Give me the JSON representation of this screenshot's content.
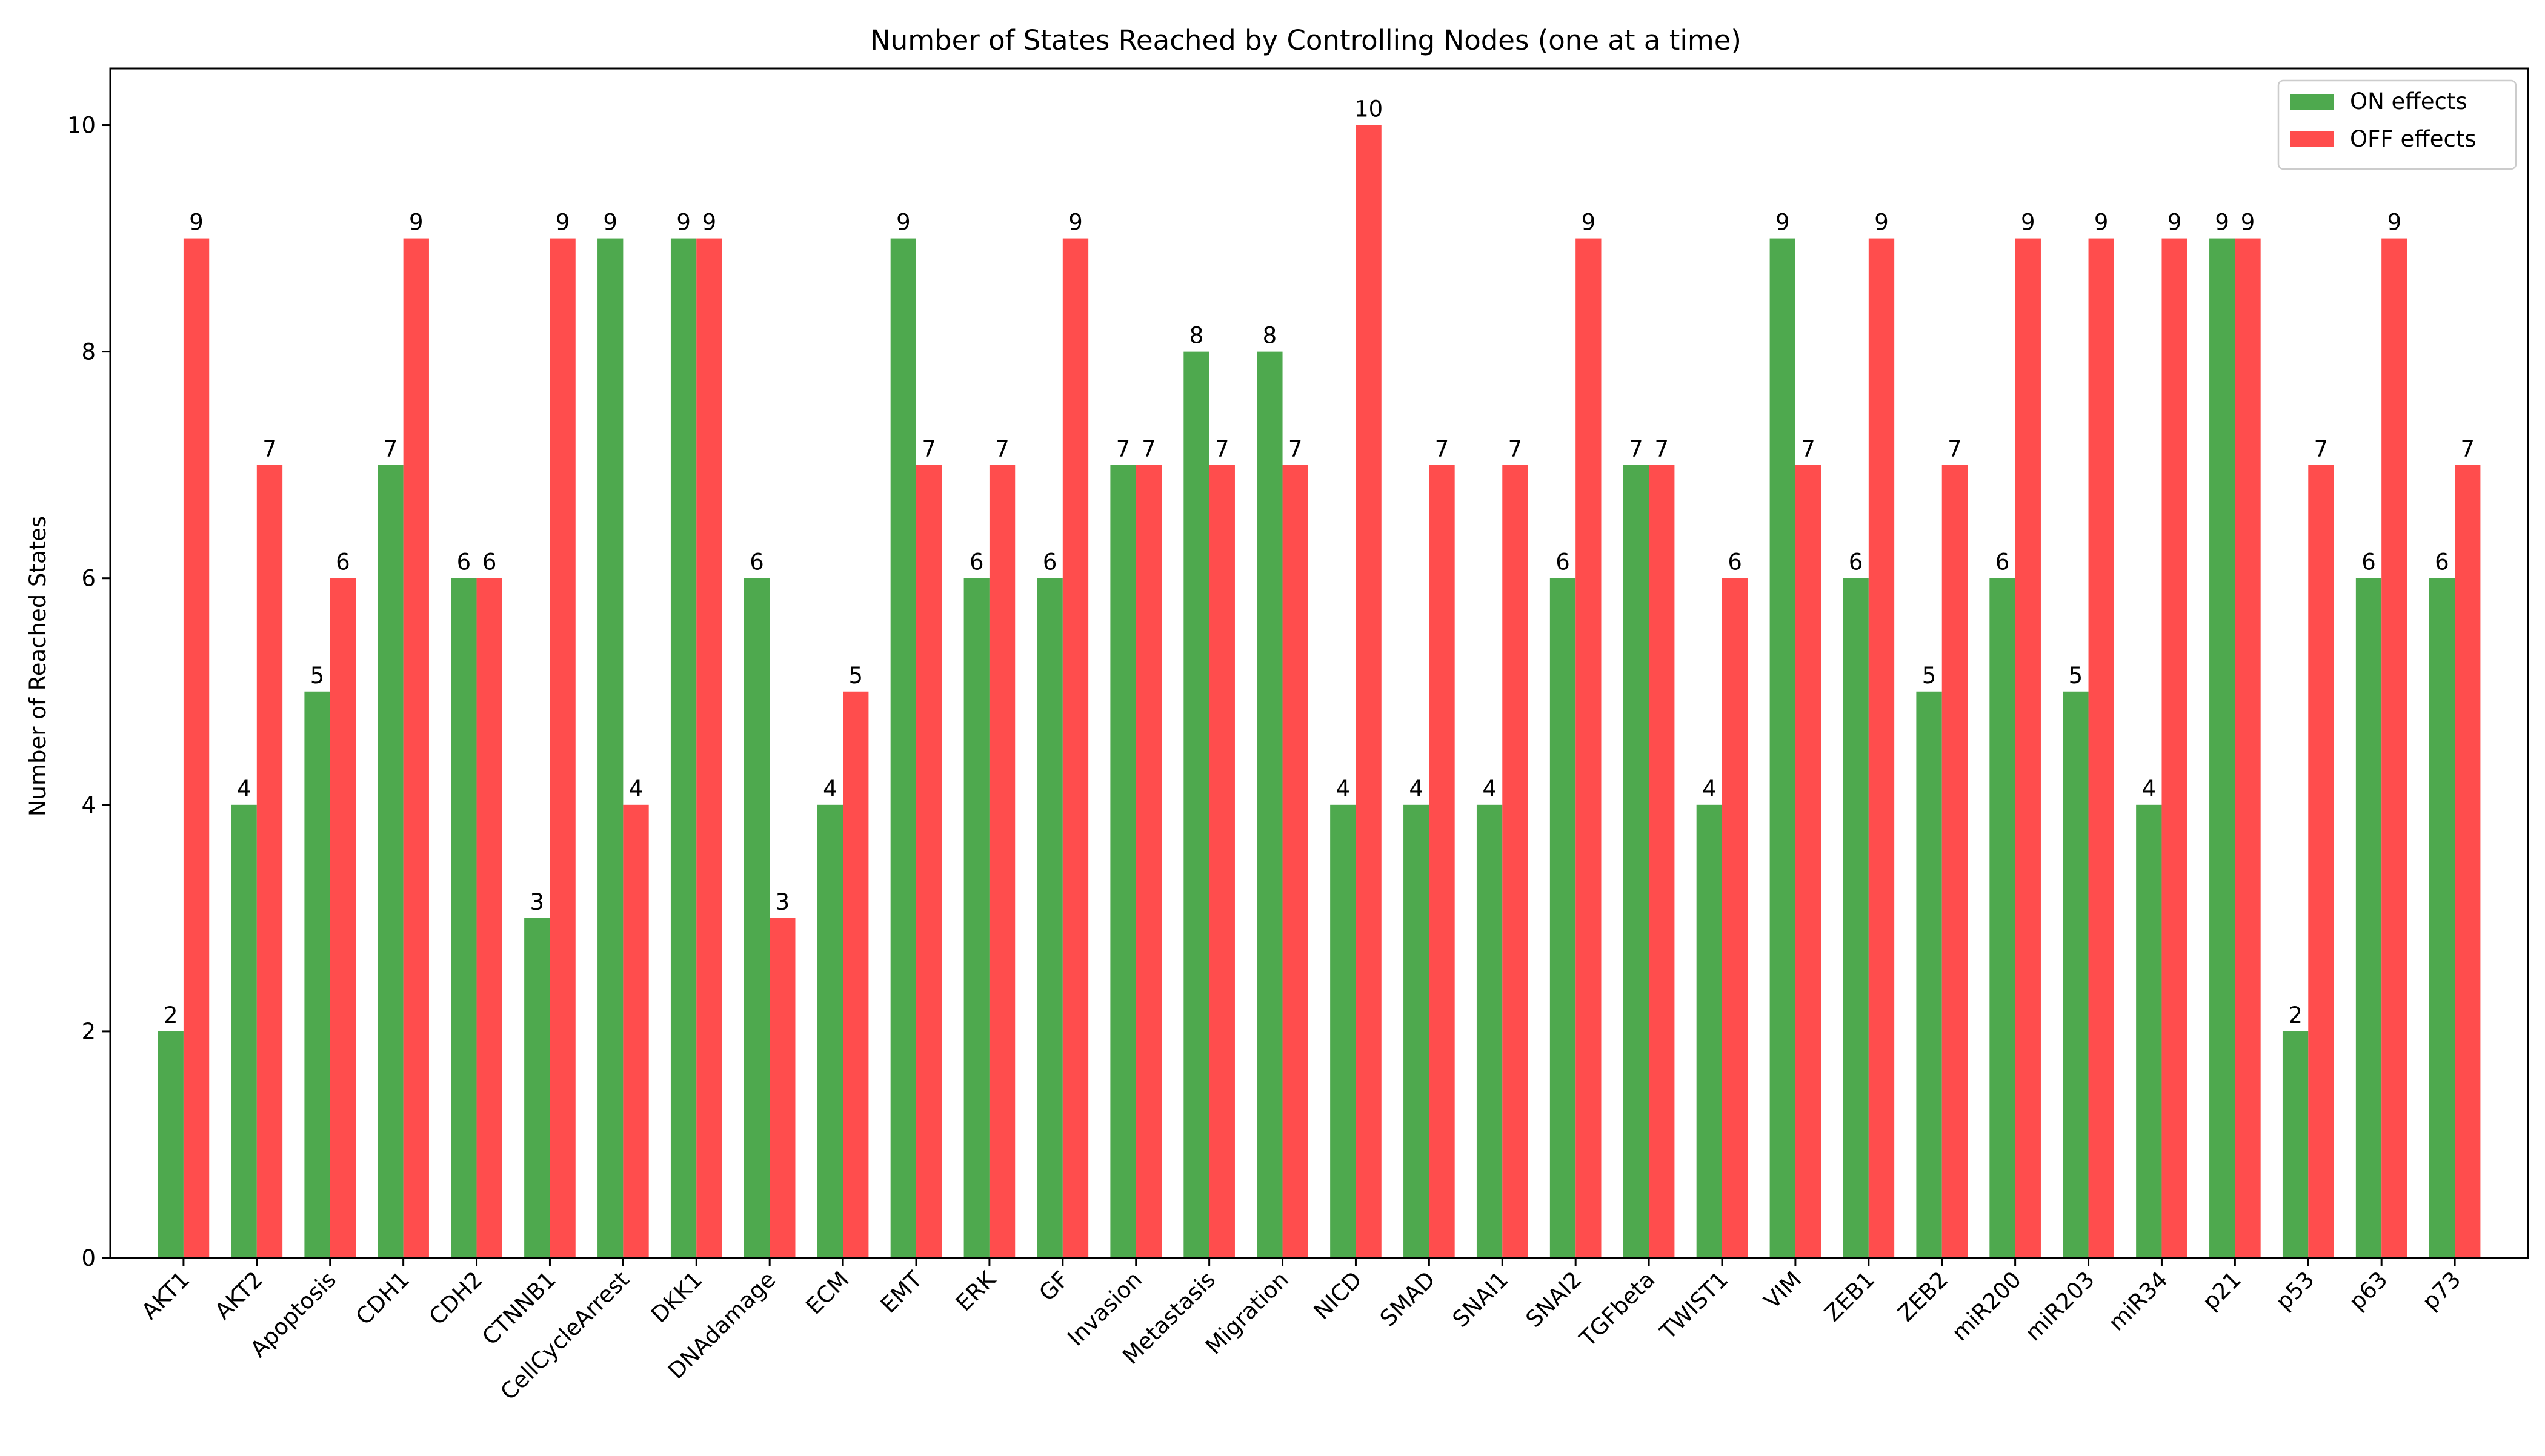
{
  "chart_data": {
    "type": "bar",
    "title": "Number of States Reached by Controlling Nodes (one at a time)",
    "xlabel": "",
    "ylabel": "Number of Reached States",
    "ylim": [
      0,
      10.5
    ],
    "yticks": [
      0,
      2,
      4,
      6,
      8,
      10
    ],
    "grid": false,
    "legend_position": "top-right",
    "categories": [
      "AKT1",
      "AKT2",
      "Apoptosis",
      "CDH1",
      "CDH2",
      "CTNNB1",
      "CellCycleArrest",
      "DKK1",
      "DNAdamage",
      "ECM",
      "EMT",
      "ERK",
      "GF",
      "Invasion",
      "Metastasis",
      "Migration",
      "NICD",
      "SMAD",
      "SNAI1",
      "SNAI2",
      "TGFbeta",
      "TWIST1",
      "VIM",
      "ZEB1",
      "ZEB2",
      "miR200",
      "miR203",
      "miR34",
      "p21",
      "p53",
      "p63",
      "p73"
    ],
    "series": [
      {
        "name": "ON effects",
        "color": "#4ea94e",
        "values": [
          2,
          4,
          5,
          7,
          6,
          3,
          9,
          9,
          6,
          4,
          9,
          6,
          6,
          7,
          8,
          8,
          4,
          4,
          4,
          6,
          7,
          4,
          9,
          6,
          5,
          6,
          5,
          4,
          9,
          2,
          6,
          6
        ]
      },
      {
        "name": "OFF effects",
        "color": "#ff4d4d",
        "values": [
          9,
          7,
          6,
          9,
          6,
          9,
          4,
          9,
          3,
          5,
          7,
          7,
          9,
          7,
          7,
          7,
          10,
          7,
          7,
          9,
          7,
          6,
          7,
          9,
          7,
          9,
          9,
          9,
          9,
          7,
          9,
          7
        ]
      }
    ]
  }
}
